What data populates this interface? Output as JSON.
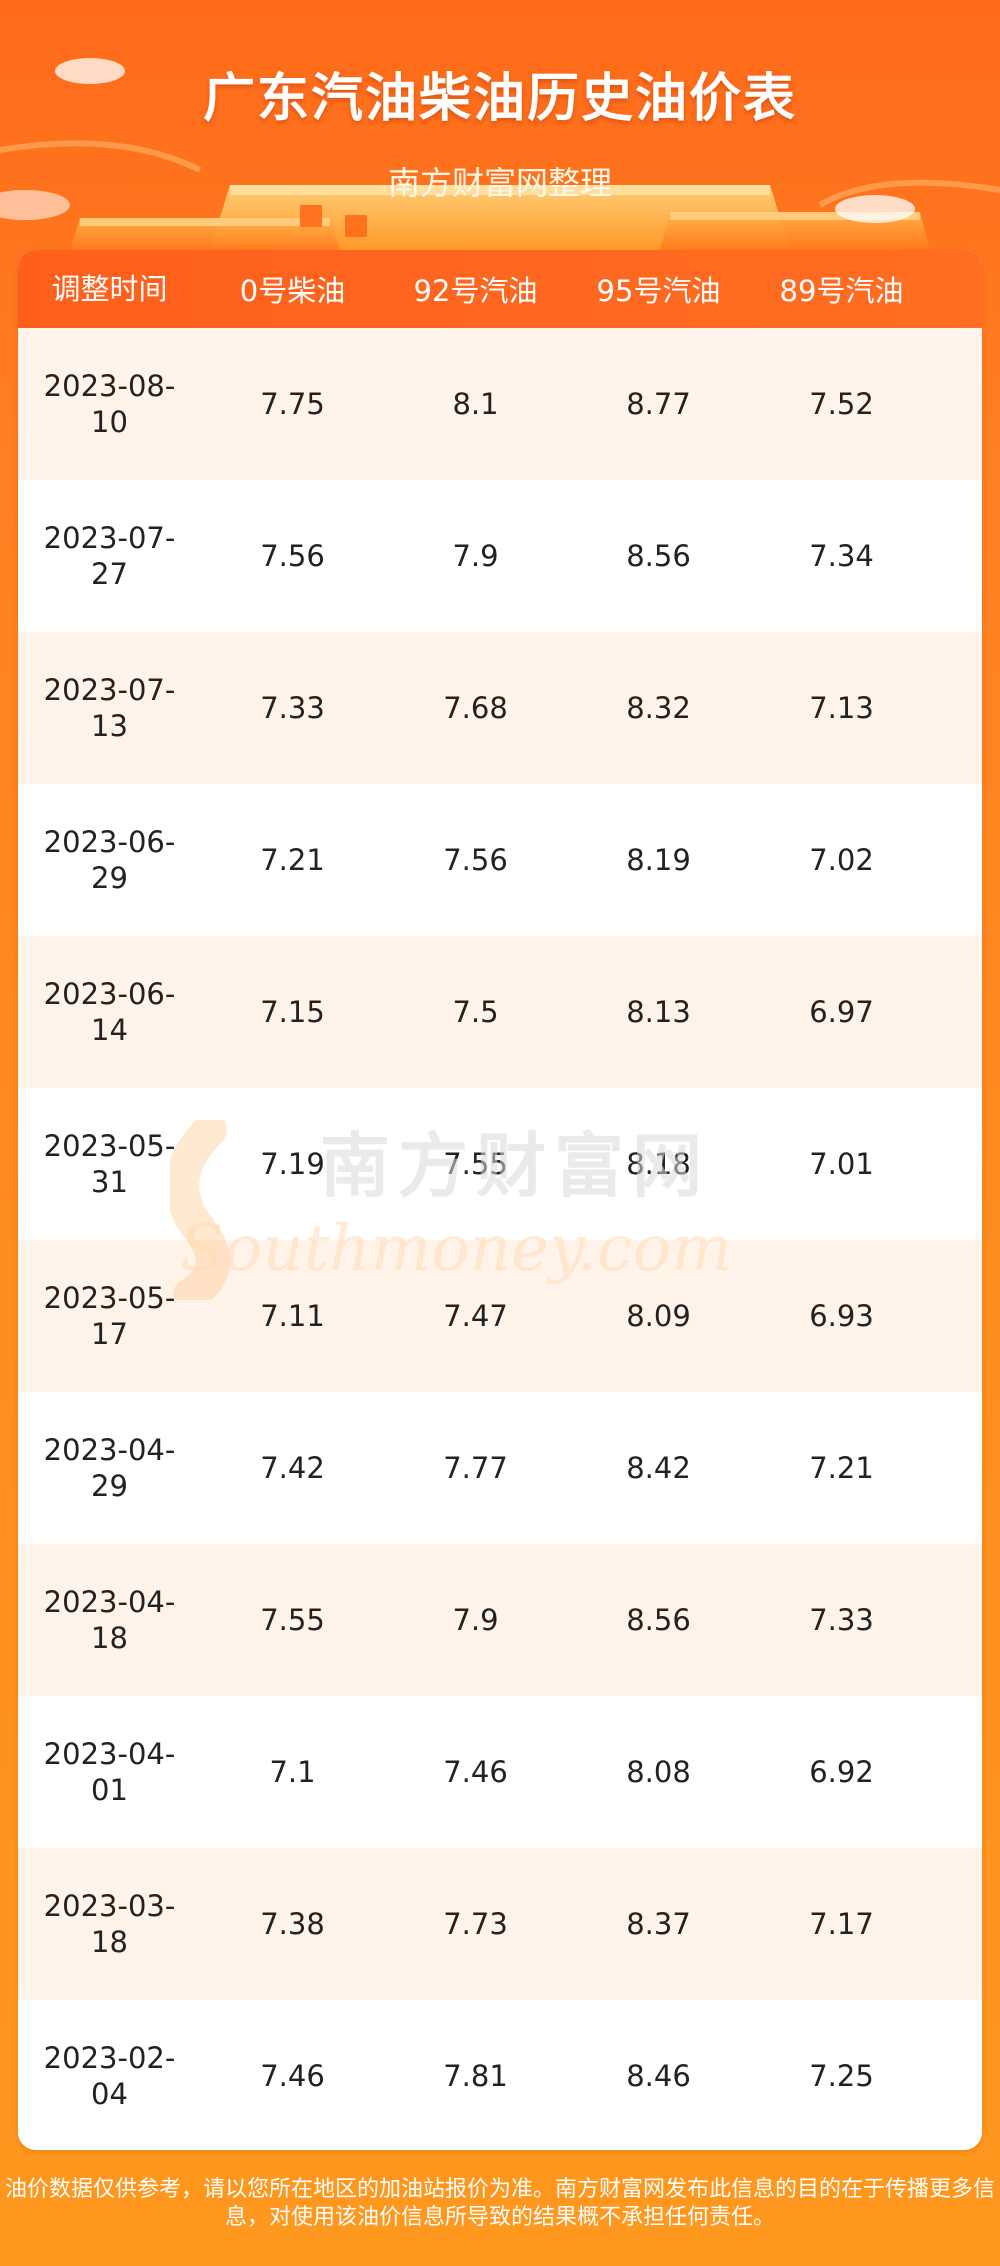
{
  "header": {
    "title": "广东汽油柴油历史油价表",
    "subtitle": "南方财富网整理"
  },
  "table": {
    "columns": [
      "调整时间",
      "0号柴油",
      "92号汽油",
      "95号汽油",
      "89号汽油"
    ],
    "rows": [
      {
        "date": "2023-08-10",
        "diesel0": "7.75",
        "gas92": "8.1",
        "gas95": "8.77",
        "gas89": "7.52"
      },
      {
        "date": "2023-07-27",
        "diesel0": "7.56",
        "gas92": "7.9",
        "gas95": "8.56",
        "gas89": "7.34"
      },
      {
        "date": "2023-07-13",
        "diesel0": "7.33",
        "gas92": "7.68",
        "gas95": "8.32",
        "gas89": "7.13"
      },
      {
        "date": "2023-06-29",
        "diesel0": "7.21",
        "gas92": "7.56",
        "gas95": "8.19",
        "gas89": "7.02"
      },
      {
        "date": "2023-06-14",
        "diesel0": "7.15",
        "gas92": "7.5",
        "gas95": "8.13",
        "gas89": "6.97"
      },
      {
        "date": "2023-05-31",
        "diesel0": "7.19",
        "gas92": "7.55",
        "gas95": "8.18",
        "gas89": "7.01"
      },
      {
        "date": "2023-05-17",
        "diesel0": "7.11",
        "gas92": "7.47",
        "gas95": "8.09",
        "gas89": "6.93"
      },
      {
        "date": "2023-04-29",
        "diesel0": "7.42",
        "gas92": "7.77",
        "gas95": "8.42",
        "gas89": "7.21"
      },
      {
        "date": "2023-04-18",
        "diesel0": "7.55",
        "gas92": "7.9",
        "gas95": "8.56",
        "gas89": "7.33"
      },
      {
        "date": "2023-04-01",
        "diesel0": "7.1",
        "gas92": "7.46",
        "gas95": "8.08",
        "gas89": "6.92"
      },
      {
        "date": "2023-03-18",
        "diesel0": "7.38",
        "gas92": "7.73",
        "gas95": "8.37",
        "gas89": "7.17"
      },
      {
        "date": "2023-02-04",
        "diesel0": "7.46",
        "gas92": "7.81",
        "gas95": "8.46",
        "gas89": "7.25"
      }
    ]
  },
  "watermark": {
    "cn": "南方财富网",
    "en": "Southmoney.com"
  },
  "footer": {
    "line1": "油价数据仅供参考，请以您所在地区的加油站报价为准。南方财富网发布此信息的目的在于传播更多信",
    "line2": "息，对使用该油价信息所导致的结果概不承担任何责任。"
  },
  "colors": {
    "header_bar": "#ff5f1c",
    "row_alt": "#fff3ea",
    "background": "#ff8e1f"
  }
}
